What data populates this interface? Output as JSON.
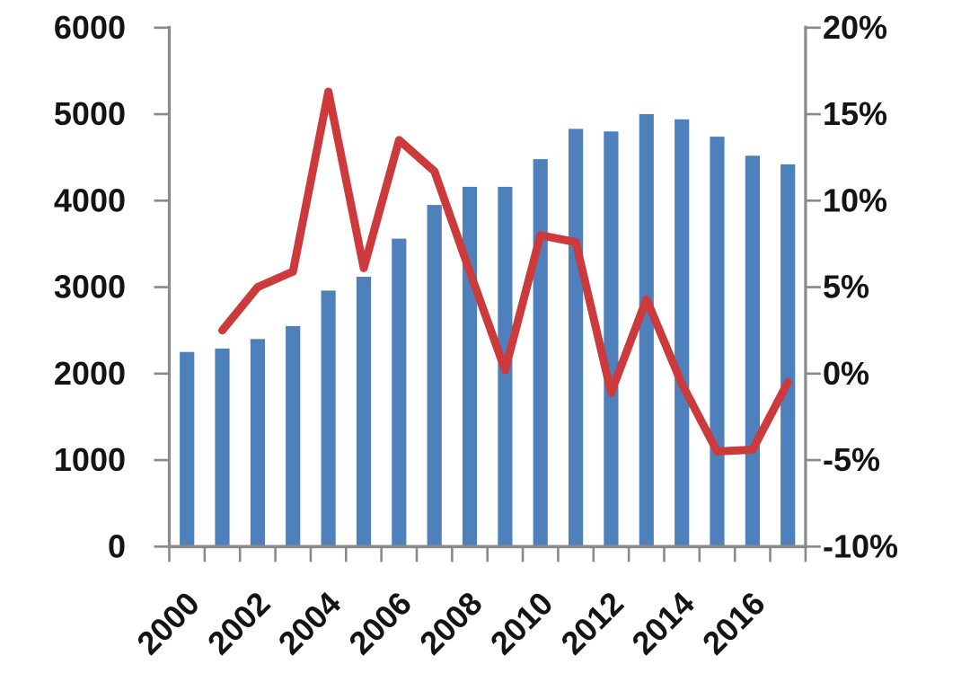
{
  "colors": {
    "bar": "#4E81BC",
    "line": "#CC3A3C",
    "axis": "#8A8A8A",
    "label_text": "#141414",
    "background": "#FFFFFF"
  },
  "chart_data": {
    "type": "combo",
    "title": "",
    "xlabel": "",
    "ylabel_left": "",
    "ylabel_right": "",
    "grid": false,
    "legend": false,
    "categories": [
      2000,
      2001,
      2002,
      2003,
      2004,
      2005,
      2006,
      2007,
      2008,
      2009,
      2010,
      2011,
      2012,
      2013,
      2014,
      2015,
      2016,
      2017
    ],
    "series": [
      {
        "name": "volume-bars",
        "type": "bar",
        "axis": "left",
        "color": "#4E81BC",
        "values": [
          2250,
          2290,
          2400,
          2550,
          2960,
          3120,
          3560,
          3950,
          4160,
          4160,
          4480,
          4830,
          4800,
          5000,
          4940,
          4740,
          4520,
          4420
        ]
      },
      {
        "name": "yoy-growth-line",
        "type": "line",
        "axis": "right",
        "color": "#CC3A3C",
        "values": [
          null,
          2.5,
          5.0,
          5.9,
          16.3,
          6.1,
          13.5,
          11.7,
          5.9,
          0.2,
          8.0,
          7.6,
          -1.1,
          4.3,
          -0.6,
          -4.5,
          -4.4,
          -0.5
        ]
      }
    ],
    "left_axis": {
      "min": 0,
      "max": 6000,
      "step": 1000,
      "tick_labels": [
        "6000",
        "5000",
        "4000",
        "3000",
        "2000",
        "1000",
        "0"
      ]
    },
    "right_axis": {
      "min": -10,
      "max": 20,
      "step": 5,
      "tick_labels": [
        "20%",
        "15%",
        "10%",
        "5%",
        "0%",
        "-5%",
        "-10%"
      ]
    },
    "x_tick_labels": [
      "2000",
      "2002",
      "2004",
      "2006",
      "2008",
      "2010",
      "2012",
      "2014",
      "2016"
    ],
    "x_label_rotation_deg": -45
  }
}
